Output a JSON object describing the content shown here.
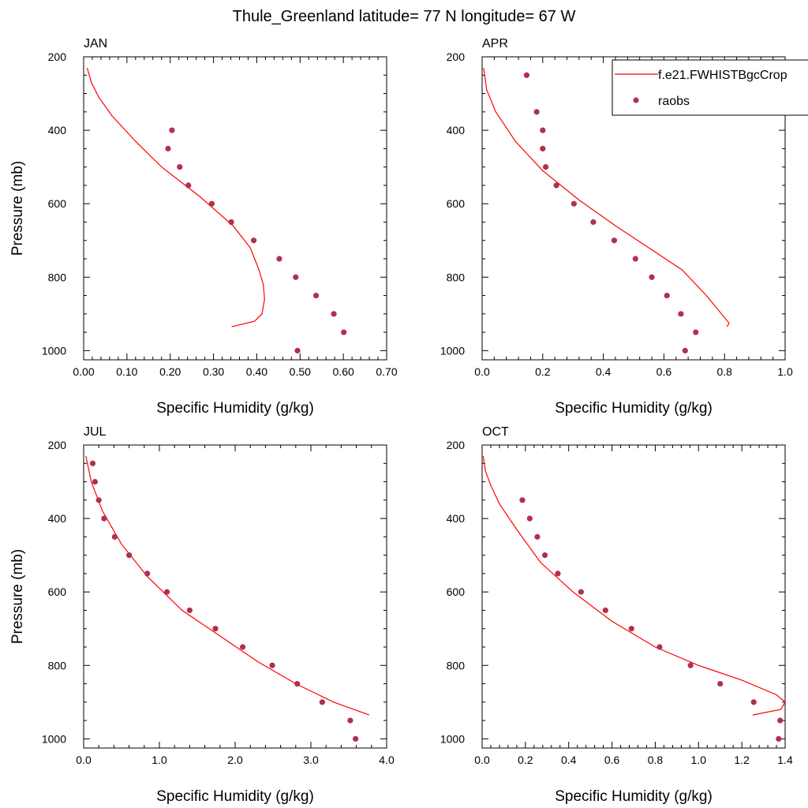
{
  "title": "Thule_Greenland  latitude= 77 N longitude= 67 W",
  "legend": {
    "placement": "top-right of APR panel",
    "items": [
      {
        "label": "f.e21.FWHISTBgcCrop",
        "kind": "line",
        "color": "#ff0000"
      },
      {
        "label": "raobs",
        "kind": "marker",
        "color": "#b03050"
      }
    ]
  },
  "colors": {
    "model_line": "#ff0000",
    "obs_marker": "#b03050",
    "axes": "#000000"
  },
  "chart_data": [
    {
      "type": "line",
      "panel": "JAN",
      "xlabel": "Specific Humidity (g/kg)",
      "ylabel": "Pressure (mb)",
      "xlim": [
        0,
        0.7
      ],
      "ylim": [
        1025,
        200
      ],
      "y_inverted": true,
      "xticks": [
        "0.00",
        "0.10",
        "0.20",
        "0.30",
        "0.40",
        "0.50",
        "0.60",
        "0.70"
      ],
      "yticks": [
        "200",
        "400",
        "600",
        "800",
        "1000"
      ],
      "series": [
        {
          "name": "f.e21.FWHISTBgcCrop",
          "style": "line",
          "x": [
            0.342,
            0.395,
            0.412,
            0.418,
            0.415,
            0.405,
            0.385,
            0.345,
            0.268,
            0.18,
            0.12,
            0.065,
            0.035,
            0.018,
            0.008
          ],
          "y": [
            935,
            920,
            900,
            860,
            820,
            780,
            720,
            660,
            580,
            500,
            430,
            360,
            310,
            270,
            230
          ]
        },
        {
          "name": "raobs",
          "style": "markers",
          "x": [
            0.204,
            0.195,
            0.222,
            0.242,
            0.296,
            0.341,
            0.393,
            0.452,
            0.49,
            0.537,
            0.578,
            0.601,
            0.494
          ],
          "y": [
            400,
            450,
            500,
            550,
            600,
            650,
            700,
            750,
            800,
            850,
            900,
            950,
            1000
          ]
        }
      ]
    },
    {
      "type": "line",
      "panel": "APR",
      "xlabel": "Specific Humidity (g/kg)",
      "ylabel": "",
      "xlim": [
        0,
        1.0
      ],
      "ylim": [
        1025,
        200
      ],
      "y_inverted": true,
      "xticks": [
        "0.0",
        "0.2",
        "0.4",
        "0.6",
        "0.8",
        "1.0"
      ],
      "yticks": [
        "200",
        "400",
        "600",
        "800",
        "1000"
      ],
      "series": [
        {
          "name": "f.e21.FWHISTBgcCrop",
          "style": "line",
          "x": [
            0.808,
            0.815,
            0.74,
            0.66,
            0.55,
            0.44,
            0.32,
            0.2,
            0.11,
            0.045,
            0.015,
            0.005
          ],
          "y": [
            935,
            925,
            850,
            780,
            720,
            660,
            590,
            510,
            430,
            350,
            290,
            230
          ]
        },
        {
          "name": "raobs",
          "style": "markers",
          "x": [
            0.147,
            0.18,
            0.2,
            0.2,
            0.21,
            0.245,
            0.303,
            0.367,
            0.436,
            0.506,
            0.56,
            0.61,
            0.656,
            0.705,
            0.67
          ],
          "y": [
            250,
            350,
            400,
            450,
            500,
            550,
            600,
            650,
            700,
            750,
            800,
            850,
            900,
            950,
            1000
          ]
        }
      ]
    },
    {
      "type": "line",
      "panel": "JUL",
      "xlabel": "Specific Humidity (g/kg)",
      "ylabel": "Pressure (mb)",
      "xlim": [
        0,
        4.0
      ],
      "ylim": [
        1025,
        200
      ],
      "y_inverted": true,
      "xticks": [
        "0.0",
        "1.0",
        "2.0",
        "3.0",
        "4.0"
      ],
      "yticks": [
        "200",
        "400",
        "600",
        "800",
        "1000"
      ],
      "series": [
        {
          "name": "f.e21.FWHISTBgcCrop",
          "style": "line",
          "x": [
            3.77,
            3.3,
            2.8,
            2.3,
            1.8,
            1.3,
            0.85,
            0.5,
            0.25,
            0.1,
            0.03
          ],
          "y": [
            935,
            900,
            850,
            790,
            720,
            650,
            560,
            470,
            380,
            300,
            230
          ]
        },
        {
          "name": "raobs",
          "style": "markers",
          "x": [
            0.12,
            0.15,
            0.2,
            0.27,
            0.41,
            0.6,
            0.84,
            1.1,
            1.4,
            1.74,
            2.1,
            2.49,
            2.82,
            3.15,
            3.52,
            3.59
          ],
          "y": [
            250,
            300,
            350,
            400,
            450,
            500,
            550,
            600,
            650,
            700,
            750,
            800,
            850,
            900,
            950,
            1000
          ]
        }
      ]
    },
    {
      "type": "line",
      "panel": "OCT",
      "xlabel": "Specific Humidity (g/kg)",
      "ylabel": "",
      "xlim": [
        0,
        1.4
      ],
      "ylim": [
        1025,
        200
      ],
      "y_inverted": true,
      "xticks": [
        "0.0",
        "0.2",
        "0.4",
        "0.6",
        "0.8",
        "1.0",
        "1.2",
        "1.4"
      ],
      "yticks": [
        "200",
        "400",
        "600",
        "800",
        "1000"
      ],
      "series": [
        {
          "name": "f.e21.FWHISTBgcCrop",
          "style": "line",
          "x": [
            1.25,
            1.38,
            1.4,
            1.36,
            1.2,
            1.0,
            0.8,
            0.6,
            0.42,
            0.27,
            0.16,
            0.08,
            0.04,
            0.015,
            0.005
          ],
          "y": [
            935,
            920,
            900,
            880,
            840,
            800,
            750,
            680,
            600,
            520,
            430,
            360,
            310,
            270,
            230
          ]
        },
        {
          "name": "raobs",
          "style": "markers",
          "x": [
            0.186,
            0.22,
            0.255,
            0.29,
            0.35,
            0.457,
            0.57,
            0.69,
            0.82,
            0.963,
            1.1,
            1.255,
            1.377,
            1.37
          ],
          "y": [
            350,
            400,
            450,
            500,
            550,
            600,
            650,
            700,
            750,
            800,
            850,
            900,
            950,
            1000
          ]
        }
      ]
    }
  ]
}
